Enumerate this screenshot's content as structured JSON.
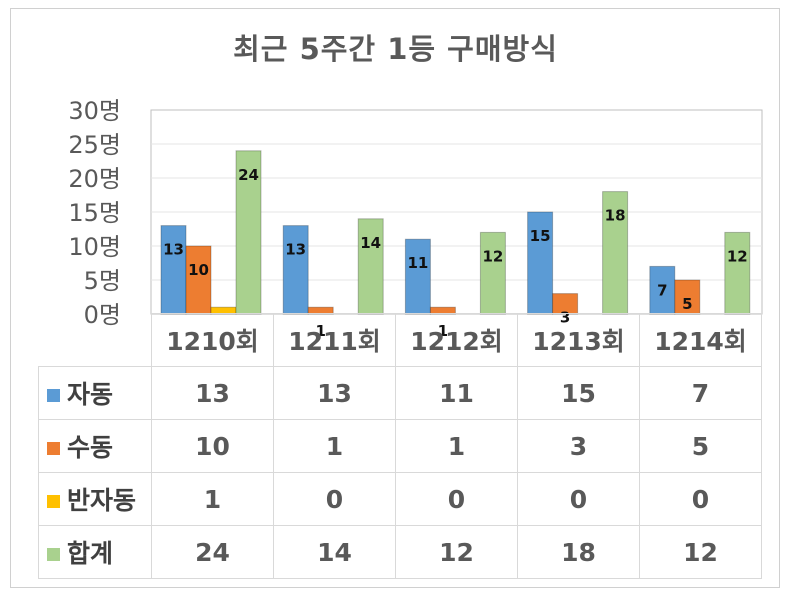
{
  "chart_data": {
    "type": "bar",
    "title": "최근 5주간 1등 구매방식",
    "categories": [
      "1210회",
      "1211회",
      "1212회",
      "1213회",
      "1214회"
    ],
    "y_tick_labels": [
      "0명",
      "5명",
      "10명",
      "15명",
      "20명",
      "25명",
      "30명"
    ],
    "ylim": [
      0,
      30
    ],
    "grid": true,
    "legend": "data-table",
    "series": [
      {
        "name": "자동",
        "color": "#5B9BD5",
        "values": [
          13,
          13,
          11,
          15,
          7
        ],
        "labeled": true
      },
      {
        "name": "수동",
        "color": "#ED7D31",
        "values": [
          10,
          1,
          1,
          3,
          5
        ],
        "labeled": true
      },
      {
        "name": "반자동",
        "color": "#FFC000",
        "values": [
          1,
          0,
          0,
          0,
          0
        ],
        "labeled": false
      },
      {
        "name": "합계",
        "color": "#A9D18E",
        "values": [
          24,
          14,
          12,
          18,
          12
        ],
        "labeled": true
      }
    ]
  }
}
